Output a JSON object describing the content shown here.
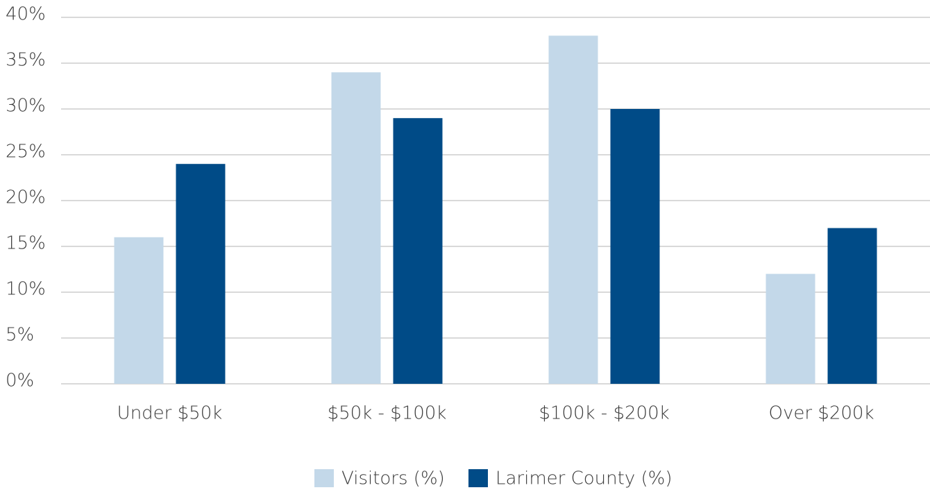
{
  "chart_data": {
    "type": "bar",
    "categories": [
      "Under $50k",
      "$50k - $100k",
      "$100k - $200k",
      "Over $200k"
    ],
    "series": [
      {
        "name": "Visitors (%)",
        "color": "#c3d8e9",
        "values": [
          16,
          34,
          38,
          12
        ]
      },
      {
        "name": "Larimer County (%)",
        "color": "#004b87",
        "values": [
          24,
          29,
          30,
          17
        ]
      }
    ],
    "ylim": [
      0,
      40
    ],
    "yticks": [
      {
        "value": 0,
        "label": "0%"
      },
      {
        "value": 5,
        "label": "5%"
      },
      {
        "value": 10,
        "label": "10%"
      },
      {
        "value": 15,
        "label": "15%"
      },
      {
        "value": 20,
        "label": "20%"
      },
      {
        "value": 25,
        "label": "25%"
      },
      {
        "value": 30,
        "label": "30%"
      },
      {
        "value": 35,
        "label": "35%"
      },
      {
        "value": 40,
        "label": "40%"
      }
    ],
    "grid": true,
    "legend": "bottom"
  }
}
